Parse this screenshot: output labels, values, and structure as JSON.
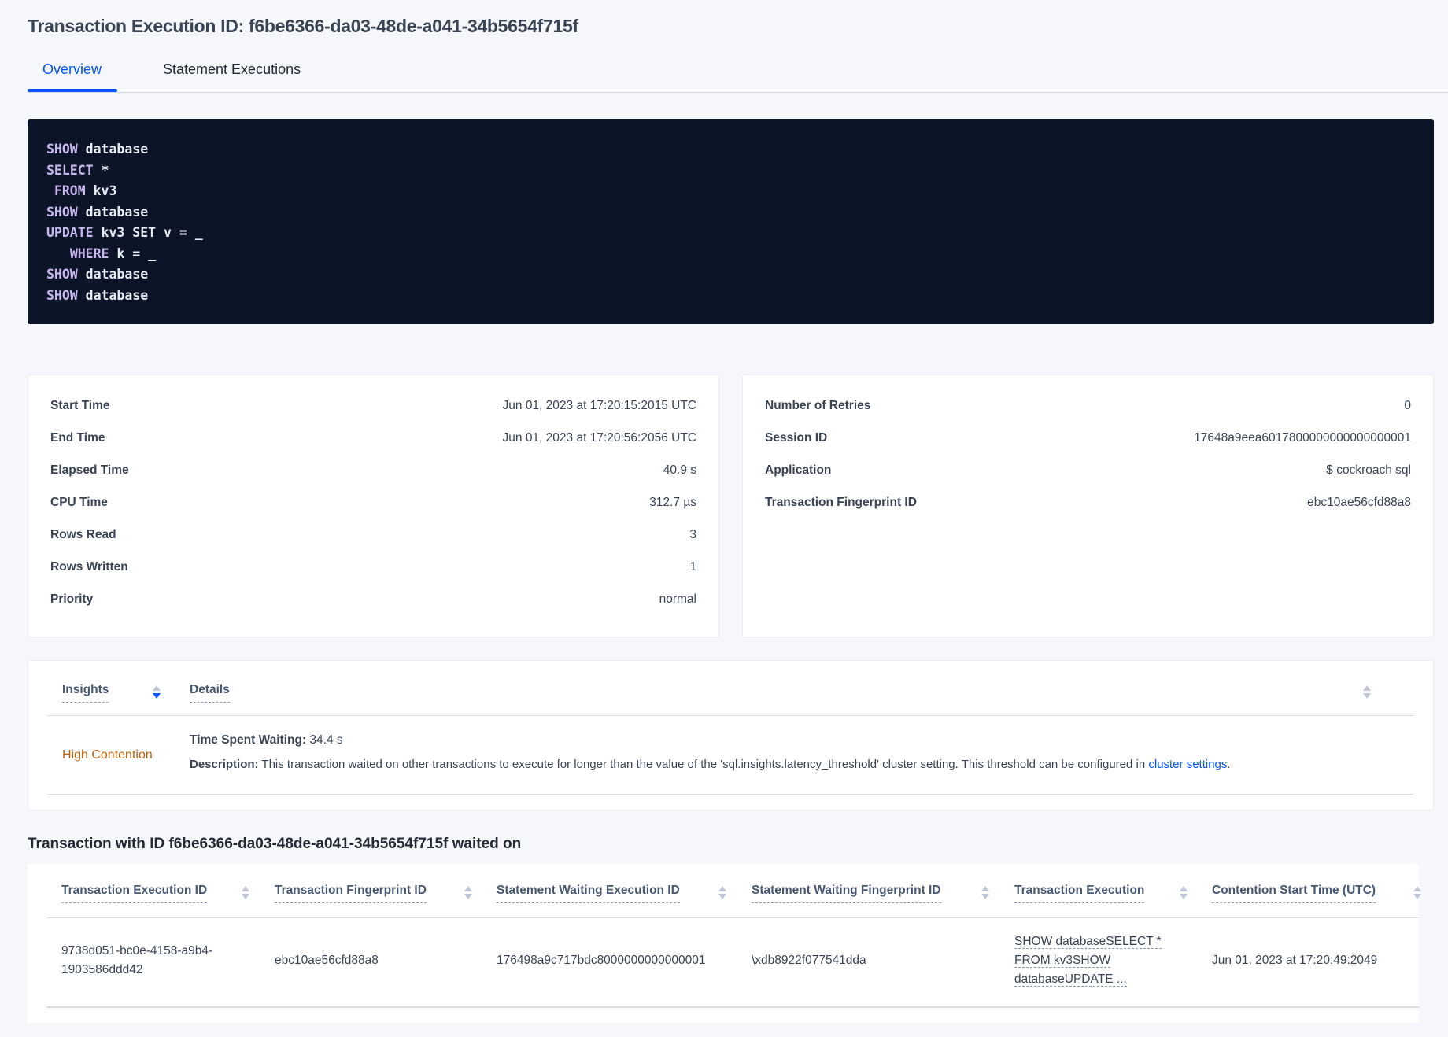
{
  "header": {
    "title": "Transaction Execution ID: f6be6366-da03-48de-a041-34b5654f715f"
  },
  "tabs": [
    {
      "label": "Overview",
      "active": true
    },
    {
      "label": "Statement Executions",
      "active": false
    }
  ],
  "sql": {
    "lines": [
      {
        "kw": "SHOW",
        "rest": " database",
        "indent": ""
      },
      {
        "kw": "SELECT",
        "rest": " *",
        "indent": ""
      },
      {
        "kw": "FROM",
        "rest": " kv3",
        "indent": " "
      },
      {
        "kw": "SHOW",
        "rest": " database",
        "indent": ""
      },
      {
        "kw": "UPDATE",
        "rest": " kv3 SET v = _",
        "indent": ""
      },
      {
        "kw": "WHERE",
        "rest": " k = _",
        "indent": "   "
      },
      {
        "kw": "SHOW",
        "rest": " database",
        "indent": ""
      },
      {
        "kw": "SHOW",
        "rest": " database",
        "indent": ""
      }
    ]
  },
  "summary_left": [
    {
      "label": "Start Time",
      "value": "Jun 01, 2023 at 17:20:15:2015 UTC"
    },
    {
      "label": "End Time",
      "value": "Jun 01, 2023 at 17:20:56:2056 UTC"
    },
    {
      "label": "Elapsed Time",
      "value": "40.9 s"
    },
    {
      "label": "CPU Time",
      "value": "312.7 µs"
    },
    {
      "label": "Rows Read",
      "value": "3"
    },
    {
      "label": "Rows Written",
      "value": "1"
    },
    {
      "label": "Priority",
      "value": "normal"
    }
  ],
  "summary_right": [
    {
      "label": "Number of Retries",
      "value": "0"
    },
    {
      "label": "Session ID",
      "value": "17648a9eea6017800000000000000001"
    },
    {
      "label": "Application",
      "value": "$ cockroach sql"
    },
    {
      "label": "Transaction Fingerprint ID",
      "value": "ebc10ae56cfd88a8"
    }
  ],
  "insights": {
    "headers": {
      "insights": "Insights",
      "details": "Details"
    },
    "row": {
      "insight": "High Contention",
      "time_label": "Time Spent Waiting:",
      "time_value": " 34.4 s",
      "desc_label": "Description:",
      "desc_text": " This transaction waited on other transactions to execute for longer than the value of the 'sql.insights.latency_threshold' cluster setting. This threshold can be configured in ",
      "desc_link": "cluster settings",
      "desc_end": "."
    }
  },
  "waited_on": {
    "heading": "Transaction with ID f6be6366-da03-48de-a041-34b5654f715f waited on",
    "columns": [
      "Transaction Execution ID",
      "Transaction Fingerprint ID",
      "Statement Waiting Execution ID",
      "Statement Waiting Fingerprint ID",
      "Transaction Execution",
      "Contention Start Time (UTC)"
    ],
    "rows": [
      {
        "txn_exec_id_1": "9738d051-bc0e-4158-a9b4-",
        "txn_exec_id_2": "1903586ddd42",
        "txn_fp_id": "ebc10ae56cfd88a8",
        "stmt_exec_id": "176498a9c717bdc8000000000000001",
        "stmt_fp_id": "\\xdb8922f077541dda",
        "txn_exec_1": "SHOW databaseSELECT *",
        "txn_exec_2": "FROM kv3SHOW",
        "txn_exec_3": "databaseUPDATE ...",
        "contention_start": "Jun 01, 2023 at 17:20:49:2049"
      }
    ]
  },
  "colors": {
    "accent": "#0055ff",
    "code_bg": "#0c1528",
    "insight": "#c0600a",
    "background": "#f5f7fa"
  }
}
